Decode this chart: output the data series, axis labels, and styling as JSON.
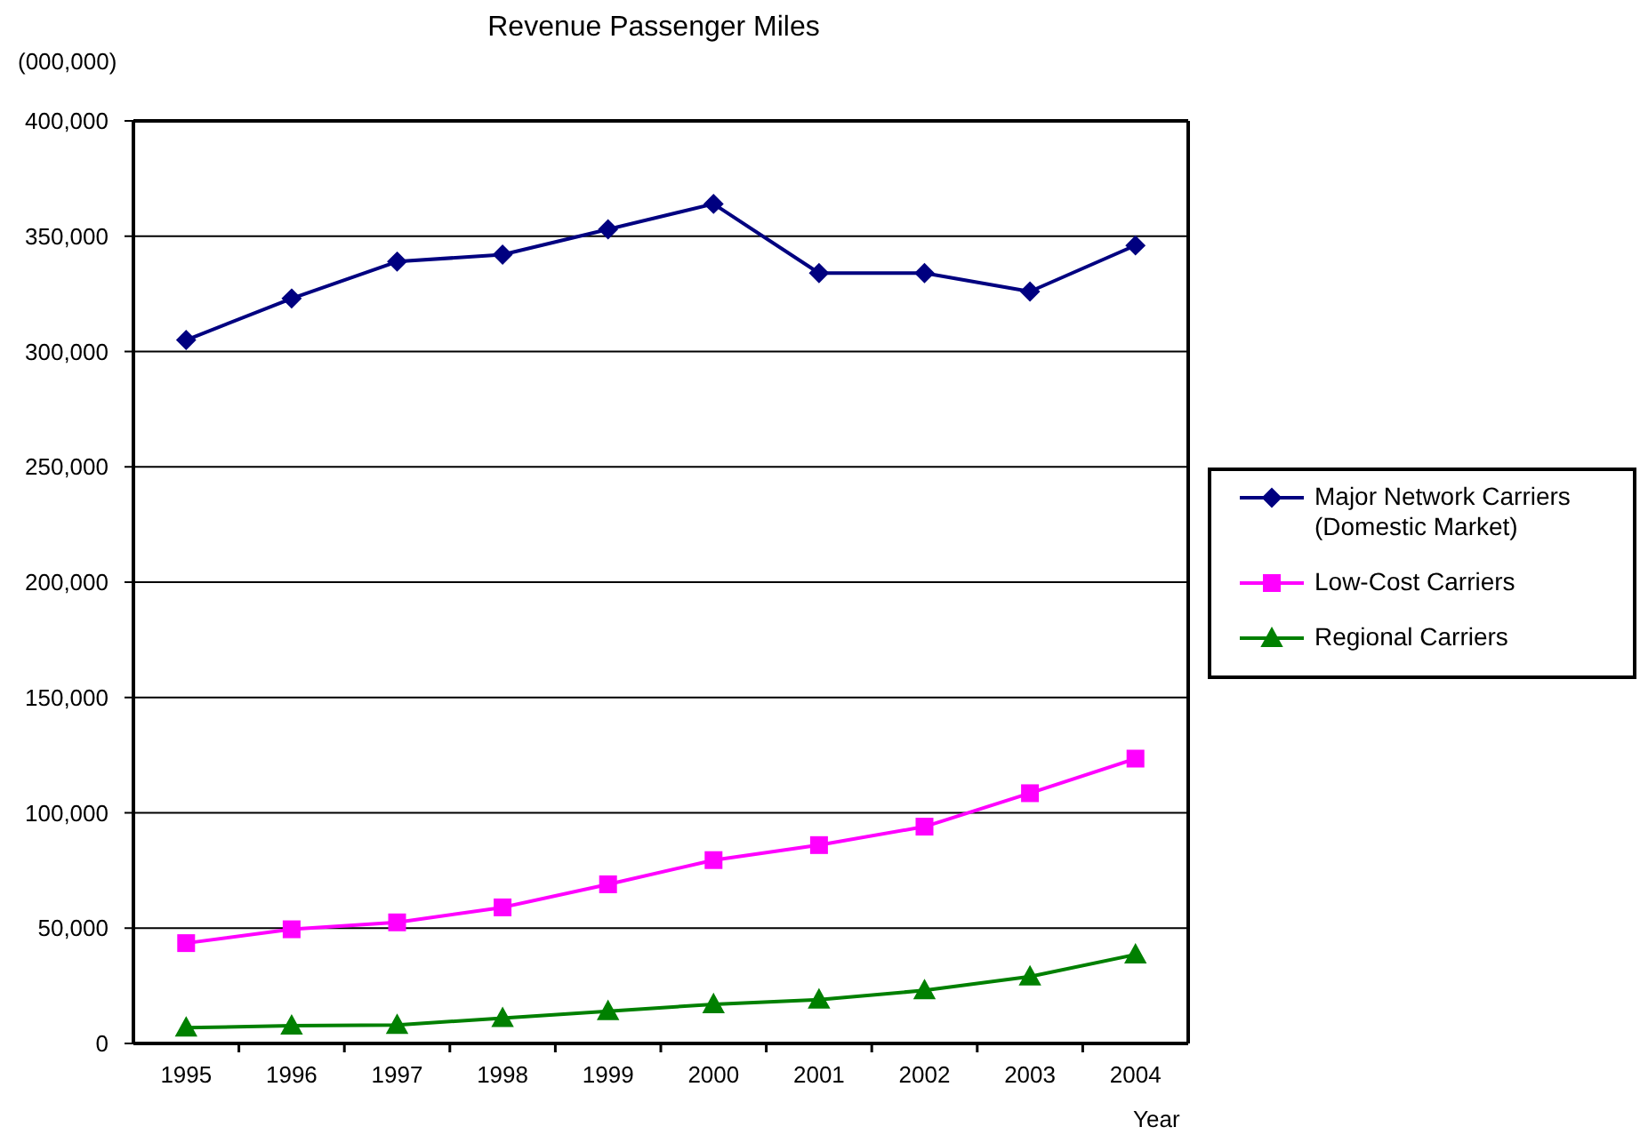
{
  "chart_data": {
    "type": "line",
    "title": "Revenue Passenger Miles",
    "xlabel": "Year",
    "ylabel": "(000,000)",
    "categories": [
      "1995",
      "1996",
      "1997",
      "1998",
      "1999",
      "2000",
      "2001",
      "2002",
      "2003",
      "2004"
    ],
    "series": [
      {
        "name": "Major Network Carriers (Domestic Market)",
        "color": "#000080",
        "marker": "diamond",
        "values": [
          305000,
          323000,
          339000,
          342000,
          353000,
          364000,
          334000,
          334000,
          326000,
          346000
        ]
      },
      {
        "name": "Low-Cost Carriers",
        "color": "#ff00ff",
        "marker": "square",
        "values": [
          43500,
          49500,
          52500,
          59000,
          69000,
          79500,
          86000,
          94000,
          108500,
          123500
        ]
      },
      {
        "name": "Regional Carriers",
        "color": "#008000",
        "marker": "triangle",
        "values": [
          6800,
          7700,
          8000,
          11000,
          14000,
          17000,
          19000,
          23000,
          29000,
          38500
        ]
      }
    ],
    "ylim": [
      0,
      400000
    ],
    "yticks": [
      0,
      {
        "value": 50000,
        "label": "50,000"
      },
      {
        "value": 100000,
        "label": "100,000"
      },
      {
        "value": 150000,
        "label": "150,000"
      },
      {
        "value": 200000,
        "label": "200,000"
      },
      {
        "value": 250000,
        "label": "250,000"
      },
      {
        "value": 300000,
        "label": "300,000"
      },
      {
        "value": 350000,
        "label": "350,000"
      },
      {
        "value": 400000,
        "label": "400,000"
      }
    ],
    "grid": "y",
    "legend": "right"
  }
}
